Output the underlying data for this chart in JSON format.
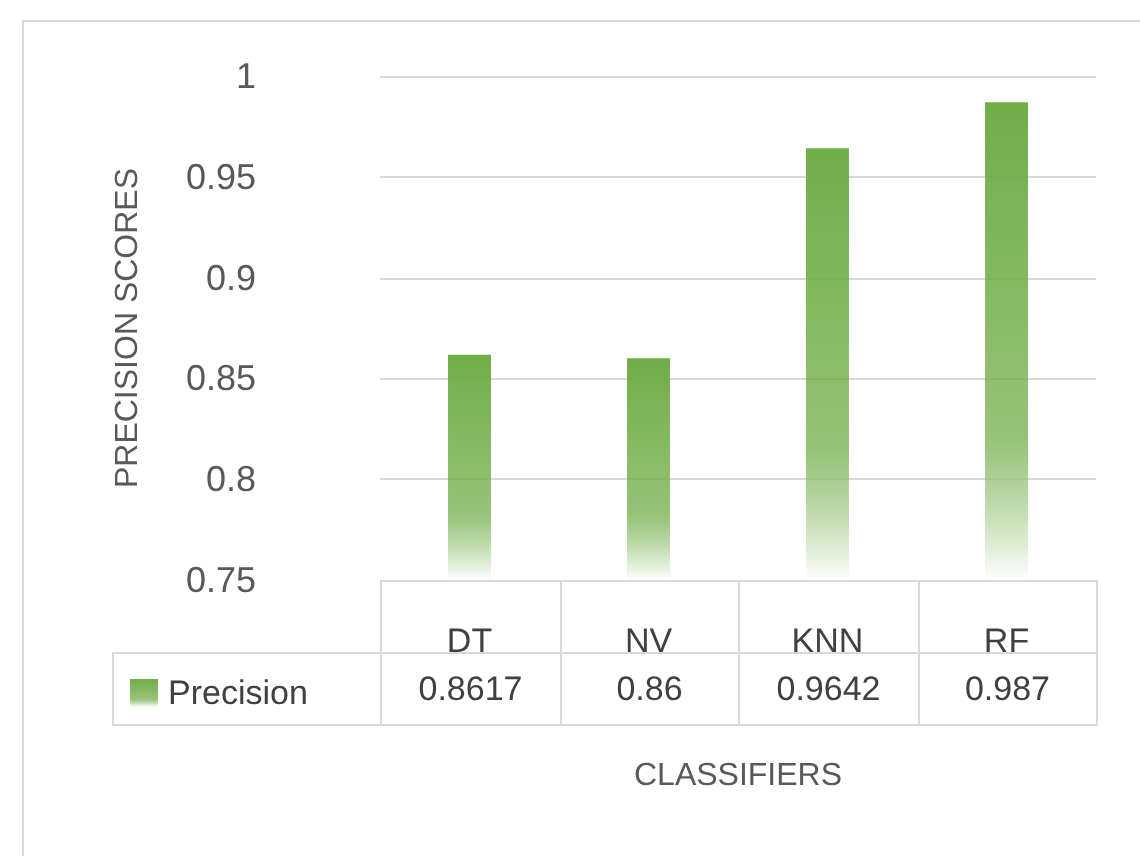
{
  "chart_data": {
    "type": "bar",
    "xlabel": "CLASSIFIERS",
    "ylabel": "PRECISION SCORES",
    "categories": [
      "DT",
      "NV",
      "KNN",
      "RF"
    ],
    "series": [
      {
        "name": "Precision",
        "color": "#70ad47",
        "values": [
          0.8617,
          0.86,
          0.9642,
          0.987
        ]
      }
    ],
    "ylim": [
      0.75,
      1
    ],
    "yticks": [
      0.75,
      0.8,
      0.85,
      0.9,
      0.95,
      1
    ],
    "grid": "y",
    "legend": "bottom left",
    "data_labels": true
  }
}
